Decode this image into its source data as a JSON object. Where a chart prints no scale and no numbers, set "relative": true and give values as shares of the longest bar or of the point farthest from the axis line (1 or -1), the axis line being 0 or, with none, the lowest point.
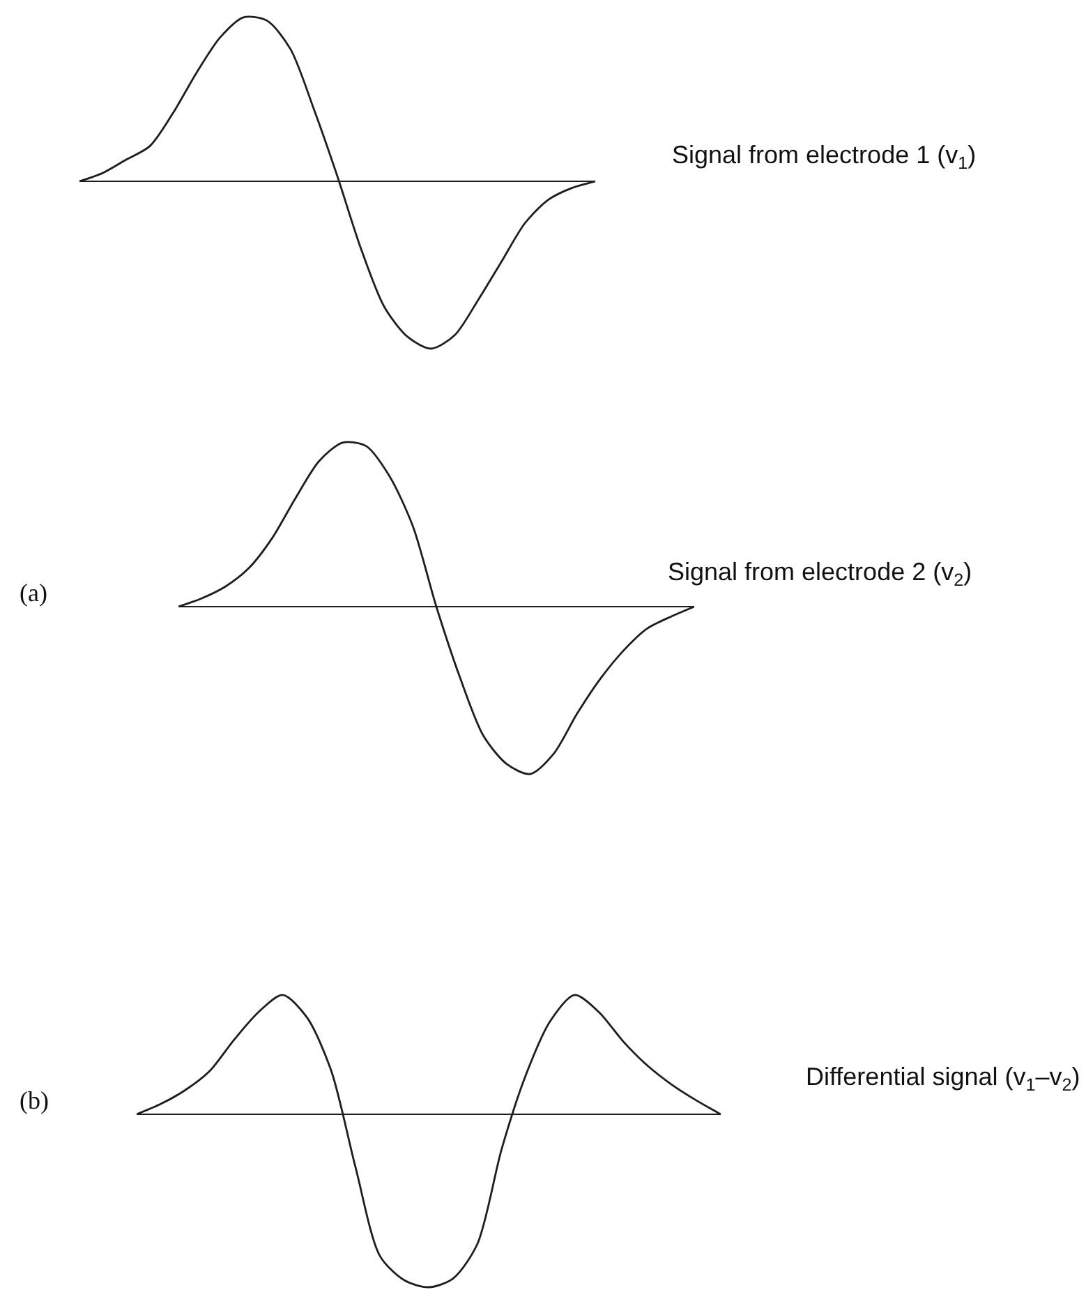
{
  "chart_data": [
    {
      "type": "line",
      "relative": true,
      "categories": [
        null,
        null,
        null,
        null,
        null,
        null,
        null,
        null,
        null,
        null,
        null,
        null,
        null,
        null,
        null,
        null,
        null,
        null,
        null,
        null,
        null,
        null,
        null
      ],
      "series": [
        {
          "name": "Signal from electrode 1 (v$_{1}$)",
          "color": "#1e1e1e",
          "values": [
            0,
            0.05,
            0.13,
            0.21,
            0.41,
            0.65,
            0.86,
            0.98,
            0.96,
            0.79,
            0.43,
            0.03,
            -0.4,
            -0.75,
            -0.93,
            -1,
            -0.92,
            -0.71,
            -0.48,
            -0.25,
            -0.11,
            -0.04,
            0
          ]
        }
      ]
    },
    {
      "type": "line",
      "relative": true,
      "categories": [
        null,
        null,
        null,
        null,
        null,
        null,
        null,
        null,
        null,
        null,
        null,
        null,
        null,
        null,
        null,
        null,
        null,
        null,
        null,
        null,
        null,
        null,
        null
      ],
      "series": [
        {
          "name": "Signal from electrode 2 (v$_{2}$)",
          "color": "#1e1e1e",
          "values": [
            0,
            0.05,
            0.12,
            0.23,
            0.41,
            0.65,
            0.87,
            0.98,
            0.96,
            0.78,
            0.48,
            0,
            -0.42,
            -0.77,
            -0.94,
            -1,
            -0.88,
            -0.64,
            -0.43,
            -0.26,
            -0.13,
            -0.06,
            0
          ]
        }
      ],
      "annotations": [
        "(a)"
      ]
    },
    {
      "type": "line",
      "relative": true,
      "categories": [
        null,
        null,
        null,
        null,
        null,
        null,
        null,
        null,
        null,
        null,
        null,
        null,
        null,
        null,
        null,
        null,
        null,
        null,
        null,
        null,
        null,
        null,
        null,
        null,
        null
      ],
      "series": [
        {
          "name": "Differential signal (v$_{1}$–v$_{2}$)",
          "color": "#1e1e1e",
          "values": [
            0,
            0.06,
            0.14,
            0.25,
            0.43,
            0.59,
            0.69,
            0.56,
            0.25,
            -0.31,
            -0.82,
            -0.96,
            -1,
            -0.95,
            -0.75,
            -0.2,
            0.23,
            0.54,
            0.69,
            0.59,
            0.42,
            0.28,
            0.17,
            0.08,
            0
          ]
        }
      ],
      "annotations": [
        "(b)"
      ]
    }
  ]
}
